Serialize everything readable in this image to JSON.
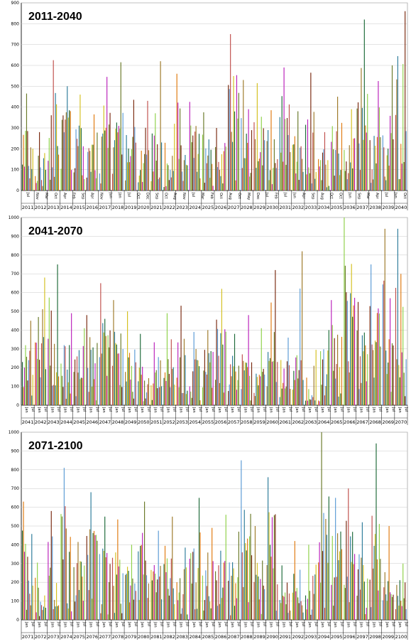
{
  "colors": [
    "#1f6b3a",
    "#e07a10",
    "#bb22bb",
    "#8fd14a",
    "#6a7a2a",
    "#7a2a10",
    "#5b9bd5",
    "#c0504d",
    "#9e7a2a",
    "#2e7d9b",
    "#d4c020"
  ],
  "chart_data": [
    {
      "type": "bar",
      "title": "2011-2040",
      "ylim": [
        0,
        900
      ],
      "yticks": [
        0,
        100,
        200,
        300,
        400,
        500,
        600,
        700,
        800,
        900
      ],
      "grid": true,
      "legend": "none",
      "categories": [
        "2011",
        "2012",
        "2013",
        "2014",
        "2015",
        "2016",
        "2017",
        "2018",
        "2019",
        "2020",
        "2021",
        "2022",
        "2023",
        "2024",
        "2025",
        "2026",
        "2027",
        "2028",
        "2029",
        "2030",
        "2031",
        "2032",
        "2033",
        "2034",
        "2035",
        "2036",
        "2037",
        "2038",
        "2039",
        "2040"
      ],
      "month_labels": [
        "Jul",
        "Nov",
        "Mar",
        "Oct",
        "Apr",
        "Feb",
        "Sep",
        "Apr",
        "Nov",
        "Jun",
        "Jan",
        "Jul",
        "Oct",
        "Dec",
        "Sep",
        "Oct",
        "Aug",
        "Nov",
        "Jul",
        "Mar",
        "Feb",
        "Oct",
        "Aug",
        "Oct",
        "May",
        "Dec",
        "Jul",
        "Feb",
        "Jul",
        "Jun",
        "Apr",
        "Sep",
        "Aug",
        "Oct",
        "Oct",
        "Jun",
        "Sep",
        "Mar",
        "Apr",
        "Jul",
        "Jun",
        "Oct"
      ],
      "peaks": [
        465,
        280,
        625,
        500,
        460,
        365,
        545,
        615,
        435,
        430,
        620,
        320,
        560,
        425,
        375,
        300,
        750,
        530,
        515,
        385,
        590,
        380,
        565,
        280,
        450,
        390,
        820,
        525,
        600,
        860
      ]
    },
    {
      "type": "bar",
      "title": "2041-2070",
      "ylim": [
        0,
        1000
      ],
      "yticks": [
        0,
        100,
        200,
        300,
        400,
        500,
        600,
        700,
        800,
        900,
        1000
      ],
      "grid": true,
      "legend": "none",
      "categories": [
        "2041",
        "2042",
        "2043",
        "2044",
        "2045",
        "2046",
        "2047",
        "2048",
        "2049",
        "2050",
        "2051",
        "2052",
        "2053",
        "2054",
        "2055",
        "2056",
        "2057",
        "2058",
        "2059",
        "2060",
        "2061",
        "2062",
        "2063",
        "2064",
        "2065",
        "2066",
        "2067",
        "2068",
        "2069",
        "2070"
      ],
      "month_labels": [
        "Jan",
        "Jul",
        "Jan",
        "Jul",
        "Jan",
        "Jul",
        "Jan",
        "Jul",
        "Jan",
        "Jul",
        "Jan",
        "Jul",
        "Jan",
        "Jul",
        "Jan",
        "Jul",
        "Jan",
        "Jul",
        "Jan",
        "Jul",
        "Jan",
        "Jul",
        "Jan",
        "Jul",
        "Jan",
        "Jul",
        "Jan",
        "Jul",
        "Jan",
        "Jul",
        "Jan",
        "Jul",
        "Jan",
        "Jul",
        "Jan",
        "Jul",
        "Jan",
        "Jul",
        "Jan",
        "Jul",
        "Jan",
        "Jul",
        "Jan",
        "Jul",
        "Jan",
        "Jul",
        "Jan",
        "Jul",
        "Jan",
        "Jul",
        "Jan",
        "Jul",
        "Jan",
        "Jul",
        "Jan",
        "Jul",
        "Jan",
        "Jul",
        "Jan",
        "Jul"
      ],
      "peaks": [
        450,
        680,
        750,
        490,
        410,
        480,
        650,
        560,
        500,
        380,
        335,
        490,
        530,
        390,
        400,
        620,
        380,
        480,
        410,
        720,
        360,
        820,
        295,
        400,
        560,
        1000,
        550,
        750,
        940,
        940
      ]
    },
    {
      "type": "bar",
      "title": "2071-2100",
      "ylim": [
        0,
        1000
      ],
      "yticks": [
        0,
        100,
        200,
        300,
        400,
        500,
        600,
        700,
        800,
        900,
        1000
      ],
      "grid": true,
      "legend": "none",
      "categories": [
        "2071",
        "2072",
        "2073",
        "2074",
        "2075",
        "2076",
        "2077",
        "2078",
        "2079",
        "2080",
        "2081",
        "2082",
        "2083",
        "2084",
        "2085",
        "2086",
        "2087",
        "2088",
        "2089",
        "2090",
        "2091",
        "2092",
        "2093",
        "2094",
        "2095",
        "2096",
        "2097",
        "2098",
        "2099",
        "2100"
      ],
      "month_labels": [
        "Jan",
        "Jul",
        "Jan",
        "Jul",
        "Jan",
        "Jul",
        "Jan",
        "Jul",
        "Jan",
        "Jul",
        "Jan",
        "Jul",
        "Jan",
        "Jul",
        "Jan",
        "Jul",
        "Jan",
        "Jul",
        "Jan",
        "Jul",
        "Jan",
        "Jul",
        "Jan",
        "Jul",
        "Jan",
        "Jul",
        "Jan",
        "Jul",
        "Jan",
        "Jul",
        "Jan",
        "Jul",
        "Jan",
        "Jul",
        "Jan",
        "Jul",
        "Jan",
        "Jul",
        "Jan",
        "Jul",
        "Jan",
        "Jul",
        "Jan",
        "Jul",
        "Jan",
        "Jul",
        "Jan",
        "Jul",
        "Jan",
        "Jul",
        "Jan",
        "Jul",
        "Jan",
        "Jul",
        "Jan",
        "Jul",
        "Jan",
        "Jul",
        "Jan",
        "Jul"
      ],
      "peaks": [
        630,
        305,
        580,
        810,
        415,
        680,
        550,
        535,
        400,
        630,
        475,
        550,
        385,
        650,
        490,
        560,
        470,
        850,
        500,
        760,
        290,
        420,
        400,
        1000,
        650,
        700,
        520,
        940,
        500,
        300
      ]
    }
  ]
}
